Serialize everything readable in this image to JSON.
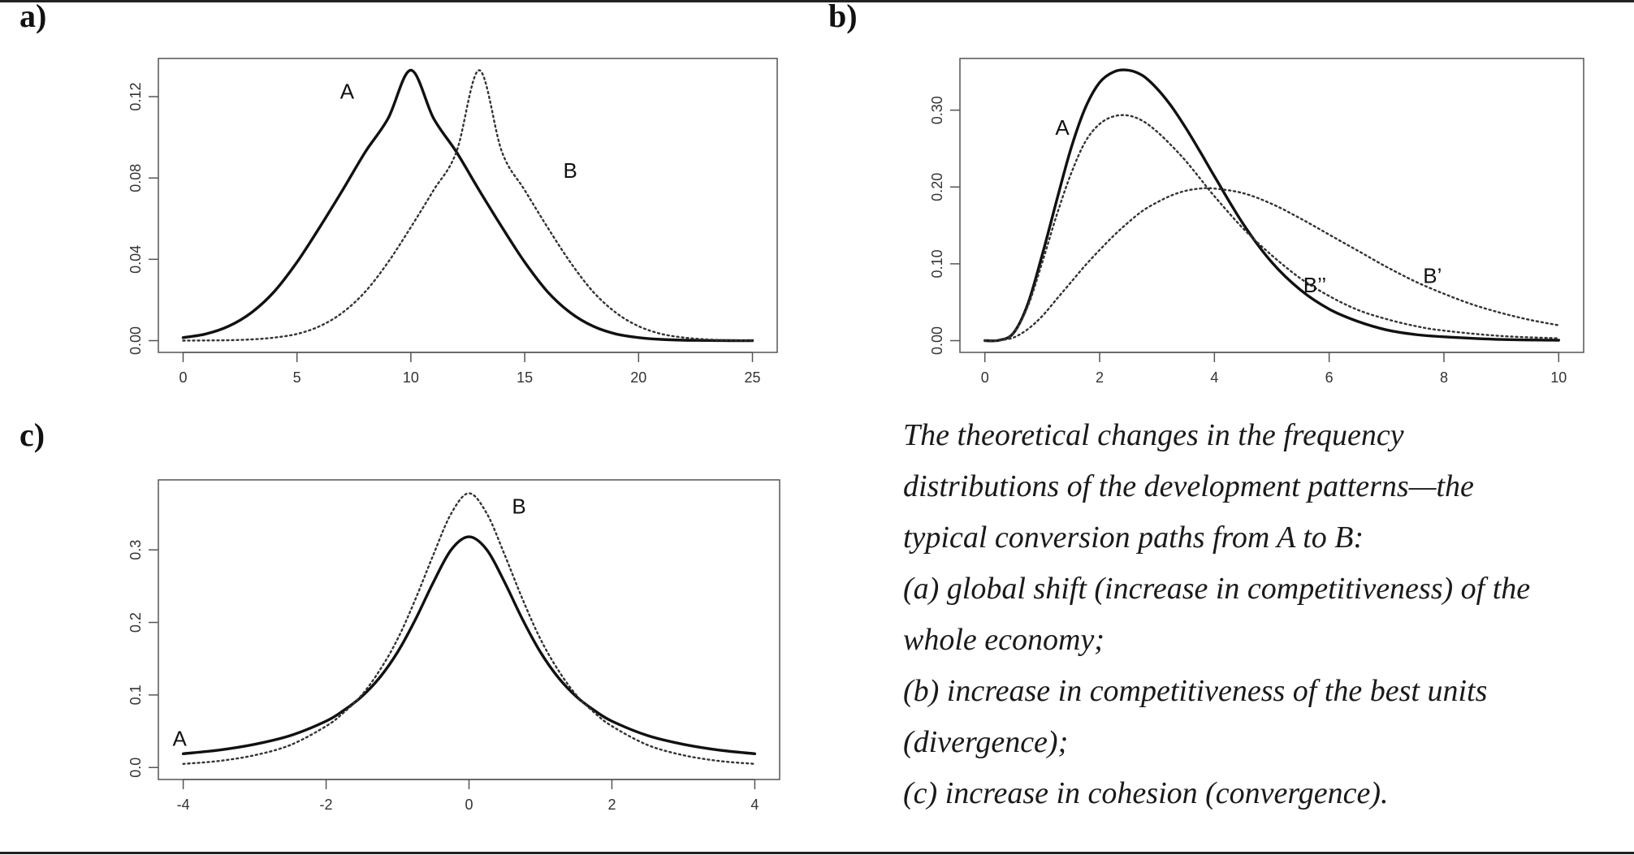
{
  "panels": {
    "a": "a)",
    "b": "b)",
    "c": "c)"
  },
  "caption": {
    "lines": [
      "The theoretical changes in the frequency",
      "distributions of the development patterns—the",
      "typical conversion paths from A to B:",
      "(a) global shift (increase in competitiveness) of the",
      "whole economy;",
      "(b) increase in competitiveness of the best units",
      "(divergence);",
      "(c) increase in cohesion (convergence)."
    ]
  },
  "chart_data": [
    {
      "panel": "a)",
      "type": "line",
      "title": "",
      "xlabel": "",
      "ylabel": "",
      "xlim": [
        0,
        25
      ],
      "ylim": [
        0,
        0.133
      ],
      "xticks": [
        0,
        5,
        10,
        15,
        20,
        25
      ],
      "yticks": [
        0.0,
        0.04,
        0.08,
        0.12
      ],
      "ytick_labels": [
        "0.00",
        "0.04",
        "0.08",
        "0.12"
      ],
      "grid": false,
      "series": [
        {
          "name": "A",
          "style": "solid",
          "color": "#111111",
          "x": [
            0,
            1,
            2,
            3,
            4,
            5,
            6,
            7,
            8,
            9,
            10,
            11,
            12,
            13,
            14,
            15,
            16,
            17,
            18,
            19,
            20,
            21,
            22,
            23,
            24,
            25
          ],
          "y": [
            0.0015,
            0.0033,
            0.0071,
            0.0138,
            0.0241,
            0.0386,
            0.0558,
            0.074,
            0.0928,
            0.1093,
            0.133,
            0.1093,
            0.0928,
            0.074,
            0.0558,
            0.0386,
            0.0241,
            0.0138,
            0.0071,
            0.0033,
            0.0015,
            0.0006,
            0.0002,
            0.0001,
            0.0,
            0.0
          ]
        },
        {
          "name": "B",
          "style": "dotted",
          "color": "#333333",
          "x": [
            0,
            1,
            2,
            3,
            4,
            5,
            6,
            7,
            8,
            9,
            10,
            11,
            12,
            13,
            14,
            15,
            16,
            17,
            18,
            19,
            20,
            21,
            22,
            23,
            24,
            25
          ],
          "y": [
            0.0,
            0.0001,
            0.0002,
            0.0006,
            0.0015,
            0.0033,
            0.0071,
            0.0138,
            0.0241,
            0.0386,
            0.0558,
            0.074,
            0.0928,
            0.133,
            0.0928,
            0.074,
            0.0558,
            0.0386,
            0.0241,
            0.0138,
            0.0071,
            0.0033,
            0.0015,
            0.0006,
            0.0002,
            0.0001
          ]
        }
      ],
      "annotations": [
        {
          "text": "A",
          "x": 7.2,
          "y": 0.119
        },
        {
          "text": "B",
          "x": 17.0,
          "y": 0.08
        }
      ]
    },
    {
      "panel": "b)",
      "type": "line",
      "title": "",
      "xlabel": "",
      "ylabel": "",
      "xlim": [
        0,
        10
      ],
      "ylim": [
        0,
        0.352
      ],
      "xticks": [
        0,
        2,
        4,
        6,
        8,
        10
      ],
      "yticks": [
        0.0,
        0.1,
        0.2,
        0.3
      ],
      "ytick_labels": [
        "0.00",
        "0.10",
        "0.20",
        "0.30"
      ],
      "grid": false,
      "series": [
        {
          "name": "A",
          "style": "solid",
          "color": "#111111",
          "x": [
            0,
            0.25,
            0.5,
            0.75,
            1,
            1.25,
            1.5,
            1.75,
            2,
            2.25,
            2.5,
            2.75,
            3,
            3.25,
            3.5,
            3.75,
            4,
            4.5,
            5,
            5.5,
            6,
            6.5,
            7,
            7.5,
            8,
            9,
            10
          ],
          "y": [
            0.0,
            0.0005,
            0.01,
            0.048,
            0.112,
            0.182,
            0.25,
            0.303,
            0.336,
            0.35,
            0.352,
            0.345,
            0.328,
            0.305,
            0.277,
            0.246,
            0.214,
            0.152,
            0.102,
            0.066,
            0.041,
            0.025,
            0.014,
            0.008,
            0.005,
            0.0015,
            0.0005
          ]
        },
        {
          "name": "B’’",
          "style": "dotted",
          "color": "#333333",
          "x": [
            0,
            0.25,
            0.5,
            0.75,
            1,
            1.25,
            1.5,
            1.75,
            2,
            2.25,
            2.5,
            2.75,
            3,
            3.25,
            3.5,
            3.75,
            4,
            4.5,
            5,
            5.5,
            6,
            6.5,
            7,
            7.5,
            8,
            9,
            10
          ],
          "y": [
            0.0,
            0.0005,
            0.01,
            0.045,
            0.102,
            0.163,
            0.217,
            0.259,
            0.282,
            0.292,
            0.293,
            0.286,
            0.272,
            0.254,
            0.234,
            0.211,
            0.188,
            0.146,
            0.111,
            0.081,
            0.058,
            0.04,
            0.028,
            0.019,
            0.013,
            0.006,
            0.003
          ]
        },
        {
          "name": "B’",
          "style": "dotted",
          "color": "#333333",
          "x": [
            0,
            0.25,
            0.5,
            0.75,
            1,
            1.25,
            1.5,
            1.75,
            2,
            2.25,
            2.5,
            2.75,
            3,
            3.25,
            3.5,
            3.75,
            4,
            4.5,
            5,
            5.5,
            6,
            6.5,
            7,
            7.5,
            8,
            8.5,
            9,
            9.5,
            10
          ],
          "y": [
            0.0,
            0.0005,
            0.004,
            0.015,
            0.032,
            0.054,
            0.076,
            0.098,
            0.118,
            0.137,
            0.154,
            0.169,
            0.18,
            0.189,
            0.195,
            0.198,
            0.198,
            0.192,
            0.178,
            0.159,
            0.138,
            0.117,
            0.096,
            0.077,
            0.061,
            0.047,
            0.036,
            0.027,
            0.02
          ]
        }
      ],
      "annotations": [
        {
          "text": "A",
          "x": 1.35,
          "y": 0.268
        },
        {
          "text": "B’’",
          "x": 5.75,
          "y": 0.063
        },
        {
          "text": "B’",
          "x": 7.8,
          "y": 0.075
        }
      ]
    },
    {
      "panel": "c)",
      "type": "line",
      "title": "",
      "xlabel": "",
      "ylabel": "",
      "xlim": [
        -4,
        4
      ],
      "ylim": [
        0,
        0.38
      ],
      "xticks": [
        -4,
        -2,
        0,
        2,
        4
      ],
      "yticks": [
        0.0,
        0.1,
        0.2,
        0.3
      ],
      "ytick_labels": [
        "0.0",
        "0.1",
        "0.2",
        "0.3"
      ],
      "grid": false,
      "series": [
        {
          "name": "A",
          "style": "solid",
          "color": "#111111",
          "x": [
            -4,
            -3.5,
            -3,
            -2.5,
            -2,
            -1.75,
            -1.5,
            -1.25,
            -1,
            -0.75,
            -0.5,
            -0.25,
            0,
            0.25,
            0.5,
            0.75,
            1,
            1.25,
            1.5,
            1.75,
            2,
            2.5,
            3,
            3.5,
            4
          ],
          "y": [
            0.019,
            0.024,
            0.032,
            0.044,
            0.064,
            0.079,
            0.098,
            0.124,
            0.159,
            0.204,
            0.255,
            0.3,
            0.318,
            0.3,
            0.255,
            0.204,
            0.159,
            0.124,
            0.098,
            0.079,
            0.064,
            0.044,
            0.032,
            0.024,
            0.019
          ]
        },
        {
          "name": "B",
          "style": "dotted",
          "color": "#333333",
          "x": [
            -4,
            -3.5,
            -3,
            -2.5,
            -2,
            -1.75,
            -1.5,
            -1.25,
            -1,
            -0.75,
            -0.5,
            -0.25,
            0,
            0.25,
            0.5,
            0.75,
            1,
            1.25,
            1.5,
            1.75,
            2,
            2.5,
            3,
            3.5,
            4
          ],
          "y": [
            0.005,
            0.009,
            0.017,
            0.031,
            0.057,
            0.076,
            0.1,
            0.134,
            0.177,
            0.232,
            0.293,
            0.35,
            0.378,
            0.35,
            0.293,
            0.232,
            0.177,
            0.134,
            0.1,
            0.076,
            0.057,
            0.031,
            0.017,
            0.009,
            0.005
          ]
        }
      ],
      "annotations": [
        {
          "text": "A",
          "x": -4.05,
          "y": 0.03
        },
        {
          "text": "B",
          "x": 0.7,
          "y": 0.35
        }
      ]
    }
  ]
}
